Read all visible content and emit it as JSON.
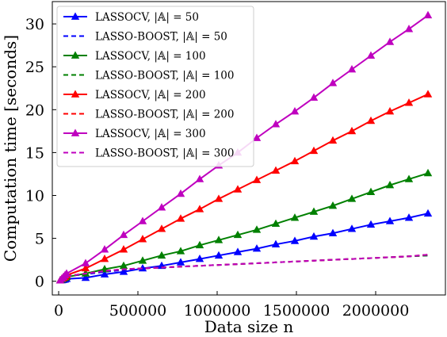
{
  "chart_data": {
    "type": "line",
    "xlabel": "Data size n",
    "ylabel": "Computation time [seconds]",
    "xlim": [
      -40000,
      2440000
    ],
    "ylim": [
      -1.6,
      32.6
    ],
    "xticks": [
      0,
      500000,
      1000000,
      1500000,
      2000000
    ],
    "yticks": [
      0,
      5,
      10,
      15,
      20,
      25,
      30
    ],
    "xtick_labels": [
      "0",
      "500000",
      "1000000",
      "1500000",
      "2000000"
    ],
    "ytick_labels": [
      "0",
      "5",
      "10",
      "15",
      "20",
      "25",
      "30"
    ],
    "legend_position": "top-left",
    "grid": false,
    "x": [
      10000,
      20000,
      30000,
      40000,
      50000,
      170000,
      290000,
      410000,
      530000,
      650000,
      770000,
      890000,
      1010000,
      1130000,
      1250000,
      1370000,
      1490000,
      1610000,
      1730000,
      1850000,
      1970000,
      2090000,
      2210000,
      2330000
    ],
    "series": [
      {
        "name": "LASSOCV, |𝔸| = 50",
        "color": "#0000ff",
        "style": "solid-triangle",
        "values": [
          0.1,
          0.12,
          0.15,
          0.2,
          0.28,
          0.4,
          0.8,
          1.1,
          1.5,
          1.8,
          2.2,
          2.6,
          3.0,
          3.4,
          3.8,
          4.3,
          4.7,
          5.2,
          5.6,
          6.1,
          6.6,
          7.0,
          7.4,
          7.9
        ]
      },
      {
        "name": "LASSO-BOOST, |𝔸| = 50",
        "color": "#0000ff",
        "style": "dashed",
        "values": [
          0.1,
          0.3,
          0.4,
          0.5,
          0.6,
          0.8,
          1.1,
          1.3,
          1.5,
          1.6,
          1.7,
          1.8,
          1.9,
          2.0,
          2.1,
          2.2,
          2.3,
          2.4,
          2.5,
          2.6,
          2.7,
          2.8,
          2.9,
          3.0
        ]
      },
      {
        "name": "LASSOCV, |𝔸| = 100",
        "color": "#008000",
        "style": "solid-triangle",
        "values": [
          0.1,
          0.2,
          0.3,
          0.4,
          0.5,
          0.9,
          1.4,
          1.8,
          2.4,
          3.0,
          3.5,
          4.2,
          4.8,
          5.4,
          6.0,
          6.7,
          7.4,
          8.1,
          8.8,
          9.6,
          10.4,
          11.2,
          11.9,
          12.6
        ]
      },
      {
        "name": "LASSO-BOOST, |𝔸| = 100",
        "color": "#008000",
        "style": "dashed",
        "values": [
          0.1,
          0.3,
          0.4,
          0.5,
          0.6,
          0.9,
          1.2,
          1.4,
          1.5,
          1.6,
          1.7,
          1.8,
          1.9,
          2.0,
          2.1,
          2.2,
          2.3,
          2.4,
          2.5,
          2.6,
          2.7,
          2.8,
          2.9,
          3.0
        ]
      },
      {
        "name": "LASSOCV, |𝔸| = 200",
        "color": "#ff0000",
        "style": "solid-triangle",
        "values": [
          0.1,
          0.3,
          0.4,
          0.5,
          0.7,
          1.5,
          2.6,
          3.7,
          4.9,
          6.1,
          7.3,
          8.4,
          9.6,
          10.7,
          11.8,
          12.9,
          14.0,
          15.2,
          16.4,
          17.5,
          18.7,
          19.8,
          20.8,
          21.8
        ]
      },
      {
        "name": "LASSO-BOOST, |𝔸| = 200",
        "color": "#ff0000",
        "style": "dashed",
        "values": [
          0.1,
          0.3,
          0.4,
          0.5,
          0.6,
          0.9,
          1.2,
          1.4,
          1.5,
          1.6,
          1.7,
          1.8,
          1.9,
          2.0,
          2.1,
          2.2,
          2.3,
          2.4,
          2.5,
          2.6,
          2.7,
          2.8,
          2.9,
          3.1
        ]
      },
      {
        "name": "LASSOCV, |𝔸| = 300",
        "color": "#bf00bf",
        "style": "solid-triangle",
        "values": [
          0.1,
          0.3,
          0.5,
          0.7,
          0.9,
          2.1,
          3.7,
          5.4,
          7.0,
          8.6,
          10.2,
          11.9,
          13.5,
          15.0,
          16.7,
          18.3,
          19.8,
          21.4,
          23.1,
          24.7,
          26.3,
          27.9,
          29.4,
          31.0
        ]
      },
      {
        "name": "LASSO-BOOST, |𝔸| = 300",
        "color": "#bf00bf",
        "style": "dashed",
        "values": [
          0.1,
          0.3,
          0.4,
          0.5,
          0.6,
          0.9,
          1.2,
          1.4,
          1.5,
          1.6,
          1.7,
          1.8,
          1.9,
          2.0,
          2.1,
          2.2,
          2.3,
          2.4,
          2.5,
          2.6,
          2.7,
          2.8,
          2.9,
          3.1
        ]
      }
    ]
  }
}
